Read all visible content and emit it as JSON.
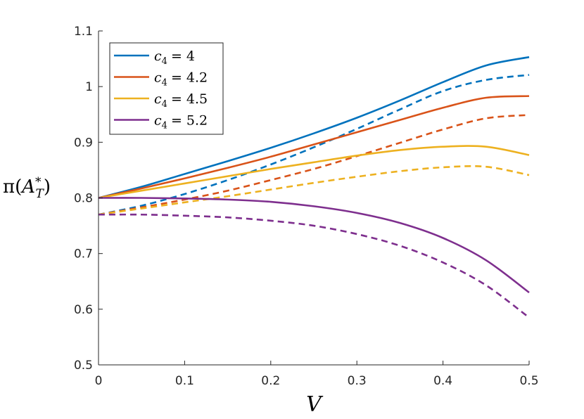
{
  "chart_data": {
    "type": "line",
    "xlabel": "V",
    "ylabel": "π(A*ₜ)",
    "ylabel_parts": {
      "pi": "π(",
      "A": "A",
      "sup": "*",
      "sub": "T",
      "close": ")"
    },
    "xlim": [
      0,
      0.5
    ],
    "ylim": [
      0.5,
      1.1
    ],
    "xticks": [
      "0",
      "0.1",
      "0.2",
      "0.3",
      "0.4",
      "0.5"
    ],
    "yticks": [
      "0.5",
      "0.6",
      "0.7",
      "0.8",
      "0.9",
      "1",
      "1.1"
    ],
    "grid": false,
    "legend_position": "top-left",
    "x": [
      0,
      0.05,
      0.1,
      0.15,
      0.2,
      0.25,
      0.3,
      0.35,
      0.4,
      0.45,
      0.5
    ],
    "series": [
      {
        "name": "c4 = 4",
        "legend_text": "= 4",
        "color": "#0072BD",
        "solid": [
          0.8,
          0.82,
          0.843,
          0.866,
          0.89,
          0.916,
          0.944,
          0.975,
          1.008,
          1.038,
          1.053
        ],
        "dashed": [
          0.77,
          0.786,
          0.807,
          0.832,
          0.86,
          0.891,
          0.924,
          0.959,
          0.992,
          1.012,
          1.021
        ]
      },
      {
        "name": "c4 = 4.2",
        "legend_text": "= 4.2",
        "color": "#D95319",
        "solid": [
          0.8,
          0.817,
          0.835,
          0.854,
          0.874,
          0.896,
          0.918,
          0.94,
          0.962,
          0.98,
          0.983
        ],
        "dashed": [
          0.77,
          0.783,
          0.797,
          0.813,
          0.832,
          0.852,
          0.875,
          0.899,
          0.923,
          0.943,
          0.949
        ]
      },
      {
        "name": "c4 = 4.5",
        "legend_text": "= 4.5",
        "color": "#EDB120",
        "solid": [
          0.8,
          0.813,
          0.826,
          0.839,
          0.852,
          0.864,
          0.876,
          0.886,
          0.892,
          0.892,
          0.877
        ],
        "dashed": [
          0.77,
          0.781,
          0.792,
          0.803,
          0.815,
          0.827,
          0.838,
          0.848,
          0.855,
          0.856,
          0.841
        ]
      },
      {
        "name": "c4 = 5.2",
        "legend_text": "= 5.2",
        "color": "#7E2F8E",
        "solid": [
          0.8,
          0.8,
          0.799,
          0.797,
          0.793,
          0.785,
          0.773,
          0.755,
          0.728,
          0.688,
          0.63
        ],
        "dashed": [
          0.77,
          0.77,
          0.768,
          0.765,
          0.759,
          0.75,
          0.735,
          0.714,
          0.684,
          0.643,
          0.585
        ]
      }
    ]
  }
}
